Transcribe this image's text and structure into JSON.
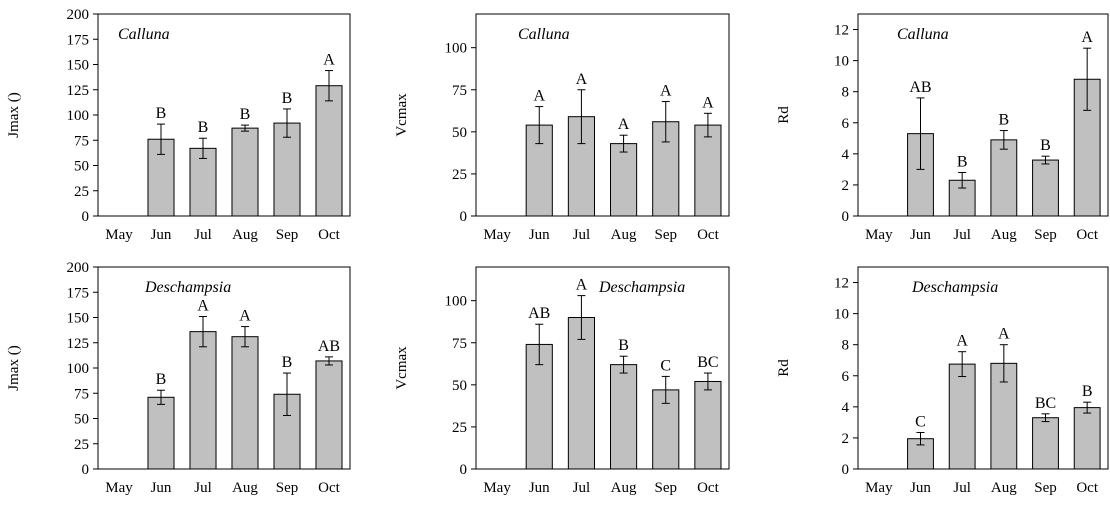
{
  "chart_data": [
    {
      "type": "bar",
      "title": "Calluna",
      "ylabel": "Jmax ()",
      "categories": [
        "May",
        "Jun",
        "Jul",
        "Aug",
        "Sep",
        "Oct"
      ],
      "values": [
        null,
        76,
        67,
        87,
        92,
        129
      ],
      "errors": [
        null,
        15,
        10,
        3,
        14,
        15
      ],
      "letters": [
        "",
        "B",
        "B",
        "B",
        "B",
        "A"
      ],
      "yticks": [
        0,
        25,
        50,
        75,
        100,
        125,
        150,
        175,
        200
      ],
      "ylim": [
        0,
        200
      ],
      "bar_color": "#c0c0c0"
    },
    {
      "type": "bar",
      "title": "Calluna",
      "ylabel": "Vcmax",
      "categories": [
        "May",
        "Jun",
        "Jul",
        "Aug",
        "Sep",
        "Oct"
      ],
      "values": [
        null,
        54,
        59,
        43,
        56,
        54
      ],
      "errors": [
        null,
        11,
        16,
        5,
        12,
        7
      ],
      "letters": [
        "",
        "A",
        "A",
        "A",
        "A",
        "A"
      ],
      "yticks": [
        0,
        25,
        50,
        75,
        100
      ],
      "ylim": [
        0,
        120
      ],
      "bar_color": "#c0c0c0"
    },
    {
      "type": "bar",
      "title": "Calluna",
      "ylabel": "Rd",
      "categories": [
        "May",
        "Jun",
        "Jul",
        "Aug",
        "Sep",
        "Oct"
      ],
      "values": [
        null,
        5.3,
        2.3,
        4.9,
        3.6,
        8.8
      ],
      "errors": [
        null,
        2.3,
        0.5,
        0.6,
        0.25,
        2.0
      ],
      "letters": [
        "",
        "AB",
        "B",
        "B",
        "B",
        "A"
      ],
      "yticks": [
        0,
        2,
        4,
        6,
        8,
        10,
        12
      ],
      "ylim": [
        0,
        13
      ],
      "bar_color": "#c0c0c0"
    },
    {
      "type": "bar",
      "title": "Deschampsia",
      "ylabel": "Jmax ()",
      "categories": [
        "May",
        "Jun",
        "Jul",
        "Aug",
        "Sep",
        "Oct"
      ],
      "values": [
        null,
        71,
        136,
        131,
        74,
        107
      ],
      "errors": [
        null,
        7,
        15,
        10,
        21,
        4
      ],
      "letters": [
        "",
        "B",
        "A",
        "A",
        "B",
        "AB"
      ],
      "yticks": [
        0,
        25,
        50,
        75,
        100,
        125,
        150,
        175,
        200
      ],
      "ylim": [
        0,
        200
      ],
      "bar_color": "#c0c0c0"
    },
    {
      "type": "bar",
      "title": "Deschampsia",
      "ylabel": "Vcmax",
      "categories": [
        "May",
        "Jun",
        "Jul",
        "Aug",
        "Sep",
        "Oct"
      ],
      "values": [
        null,
        74,
        90,
        62,
        47,
        52
      ],
      "errors": [
        null,
        12,
        13,
        5,
        8,
        5
      ],
      "letters": [
        "",
        "AB",
        "A",
        "B",
        "C",
        "BC"
      ],
      "yticks": [
        0,
        25,
        50,
        75,
        100
      ],
      "ylim": [
        0,
        120
      ],
      "bar_color": "#c0c0c0"
    },
    {
      "type": "bar",
      "title": "Deschampsia",
      "ylabel": "Rd",
      "categories": [
        "May",
        "Jun",
        "Jul",
        "Aug",
        "Sep",
        "Oct"
      ],
      "values": [
        null,
        1.95,
        6.75,
        6.8,
        3.3,
        3.95
      ],
      "errors": [
        null,
        0.4,
        0.8,
        1.2,
        0.25,
        0.35
      ],
      "letters": [
        "",
        "C",
        "A",
        "A",
        "BC",
        "B"
      ],
      "yticks": [
        0,
        2,
        4,
        6,
        8,
        10,
        12
      ],
      "ylim": [
        0,
        13
      ],
      "bar_color": "#c0c0c0"
    }
  ]
}
